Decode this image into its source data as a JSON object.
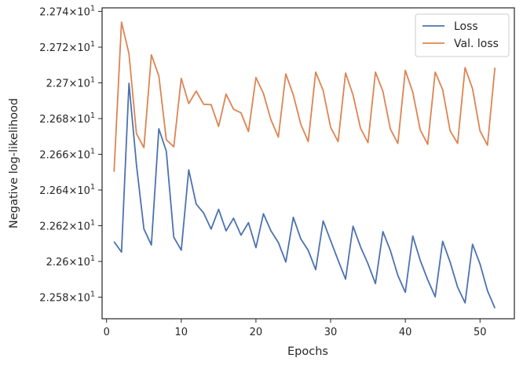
{
  "chart_data": {
    "type": "line",
    "xlabel": "Epochs",
    "ylabel": "Negative log-likelihood",
    "xlim": [
      -0.6,
      54.6
    ],
    "ylim": [
      22.5679,
      22.742
    ],
    "grid": false,
    "legend_position": "top-right",
    "x_ticks": [
      0,
      10,
      20,
      30,
      40,
      50
    ],
    "x_tick_labels": [
      "0",
      "10",
      "20",
      "30",
      "40",
      "50"
    ],
    "y_ticks": [
      22.58,
      22.6,
      22.62,
      22.64,
      22.66,
      22.68,
      22.7,
      22.72,
      22.74
    ],
    "y_tick_mantissas": [
      "2.258",
      "2.26",
      "2.262",
      "2.264",
      "2.266",
      "2.268",
      "2.27",
      "2.272",
      "2.274"
    ],
    "y_tick_base": "×10",
    "y_tick_exponent": "1",
    "x": [
      1,
      2,
      3,
      4,
      5,
      6,
      7,
      8,
      9,
      10,
      11,
      12,
      13,
      14,
      15,
      16,
      17,
      18,
      19,
      20,
      21,
      22,
      23,
      24,
      25,
      26,
      27,
      28,
      29,
      30,
      31,
      32,
      33,
      34,
      35,
      36,
      37,
      38,
      39,
      40,
      41,
      42,
      43,
      44,
      45,
      46,
      47,
      48,
      49,
      50,
      51,
      52
    ],
    "series": [
      {
        "name": "Loss",
        "color": "#4c72b0",
        "values": [
          22.6111,
          22.6052,
          22.6997,
          22.6542,
          22.6182,
          22.6092,
          22.6743,
          22.6617,
          22.6136,
          22.6063,
          22.6513,
          22.6321,
          22.6271,
          22.6181,
          22.6292,
          22.6171,
          22.6242,
          22.6147,
          22.6217,
          22.6077,
          22.6267,
          22.6172,
          22.6106,
          22.5997,
          22.6247,
          22.6127,
          22.6062,
          22.5954,
          22.6227,
          22.6116,
          22.6007,
          22.5901,
          22.6197,
          22.6082,
          22.5987,
          22.5876,
          22.6167,
          22.6061,
          22.5922,
          22.5827,
          22.6142,
          22.6006,
          22.5897,
          22.5802,
          22.6113,
          22.5996,
          22.5856,
          22.5768,
          22.6096,
          22.5986,
          22.5836,
          22.5738
        ]
      },
      {
        "name": "Val. loss",
        "color": "#dd8452",
        "values": [
          22.6502,
          22.734,
          22.7163,
          22.6716,
          22.6637,
          22.7157,
          22.7039,
          22.6681,
          22.6642,
          22.7025,
          22.6884,
          22.6954,
          22.688,
          22.6878,
          22.6756,
          22.6937,
          22.6852,
          22.6832,
          22.6727,
          22.703,
          22.6941,
          22.6794,
          22.6696,
          22.705,
          22.6933,
          22.6769,
          22.6671,
          22.706,
          22.6957,
          22.6751,
          22.6671,
          22.7055,
          22.6932,
          22.6746,
          22.6665,
          22.706,
          22.6952,
          22.6741,
          22.6661,
          22.707,
          22.6947,
          22.6736,
          22.6656,
          22.706,
          22.6962,
          22.6731,
          22.6661,
          22.7085,
          22.6967,
          22.6731,
          22.6651,
          22.7085
        ]
      }
    ]
  }
}
